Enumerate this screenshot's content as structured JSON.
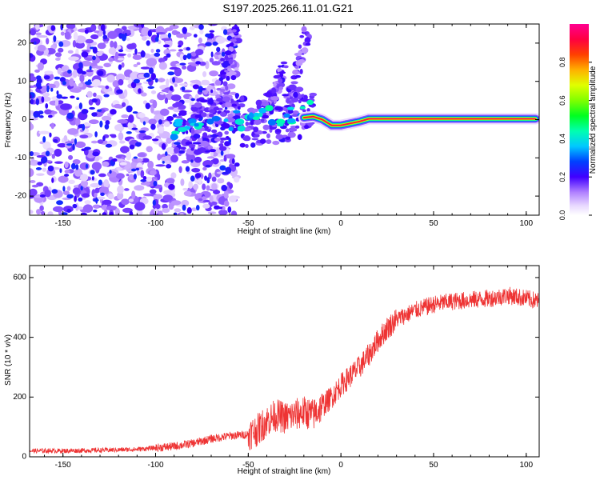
{
  "page_title": "S197.2025.266.11.01.G21",
  "chart_data": [
    {
      "type": "heatmap",
      "title": "S197.2025.266.11.01.G21",
      "xlabel": "Height of straight line (km)",
      "ylabel": "Frequency (Hz)",
      "xlim": [
        -168,
        107
      ],
      "ylim": [
        -25,
        25
      ],
      "xticks": [
        -150,
        -100,
        -50,
        0,
        50,
        100
      ],
      "yticks": [
        -20,
        -10,
        0,
        10,
        20
      ],
      "colorbar": {
        "label": "Normalized spectral amplitude",
        "range": [
          0,
          1
        ],
        "ticks": [
          0.0,
          0.2,
          0.4,
          0.6,
          0.8
        ]
      },
      "ridge": {
        "description_points_km_hz": [
          [
            -20,
            0.5
          ],
          [
            -15,
            0.8
          ],
          [
            -10,
            0.0
          ],
          [
            -5,
            -1.5
          ],
          [
            0,
            -1.5
          ],
          [
            5,
            -1.0
          ],
          [
            10,
            -0.5
          ],
          [
            15,
            0.2
          ],
          [
            105,
            0.2
          ]
        ]
      },
      "branches": [
        {
          "from": [
            -30,
            0
          ],
          "to": [
            -18,
            23
          ]
        },
        {
          "from": [
            -40,
            2
          ],
          "to": [
            -30,
            14
          ]
        },
        {
          "from": [
            -65,
            8
          ],
          "to": [
            -55,
            25
          ]
        }
      ]
    },
    {
      "type": "line",
      "xlabel": "Height of straight line (km)",
      "ylabel": "SNR (10 * v/v)",
      "xlim": [
        -168,
        107
      ],
      "ylim": [
        0,
        640
      ],
      "xticks": [
        -150,
        -100,
        -50,
        0,
        50,
        100
      ],
      "yticks": [
        0,
        200,
        400,
        600
      ],
      "series": [
        {
          "name": "SNR",
          "color": "#ee3333",
          "x": [
            -168,
            -150,
            -130,
            -110,
            -100,
            -90,
            -80,
            -70,
            -60,
            -50,
            -45,
            -40,
            -35,
            -30,
            -25,
            -20,
            -15,
            -10,
            -5,
            0,
            5,
            10,
            15,
            20,
            25,
            30,
            40,
            50,
            60,
            70,
            80,
            90,
            100,
            107
          ],
          "y": [
            20,
            20,
            22,
            25,
            30,
            35,
            45,
            60,
            70,
            75,
            90,
            120,
            140,
            130,
            140,
            150,
            140,
            170,
            200,
            240,
            270,
            300,
            340,
            390,
            430,
            460,
            490,
            510,
            520,
            525,
            530,
            540,
            530,
            520
          ]
        }
      ]
    }
  ]
}
